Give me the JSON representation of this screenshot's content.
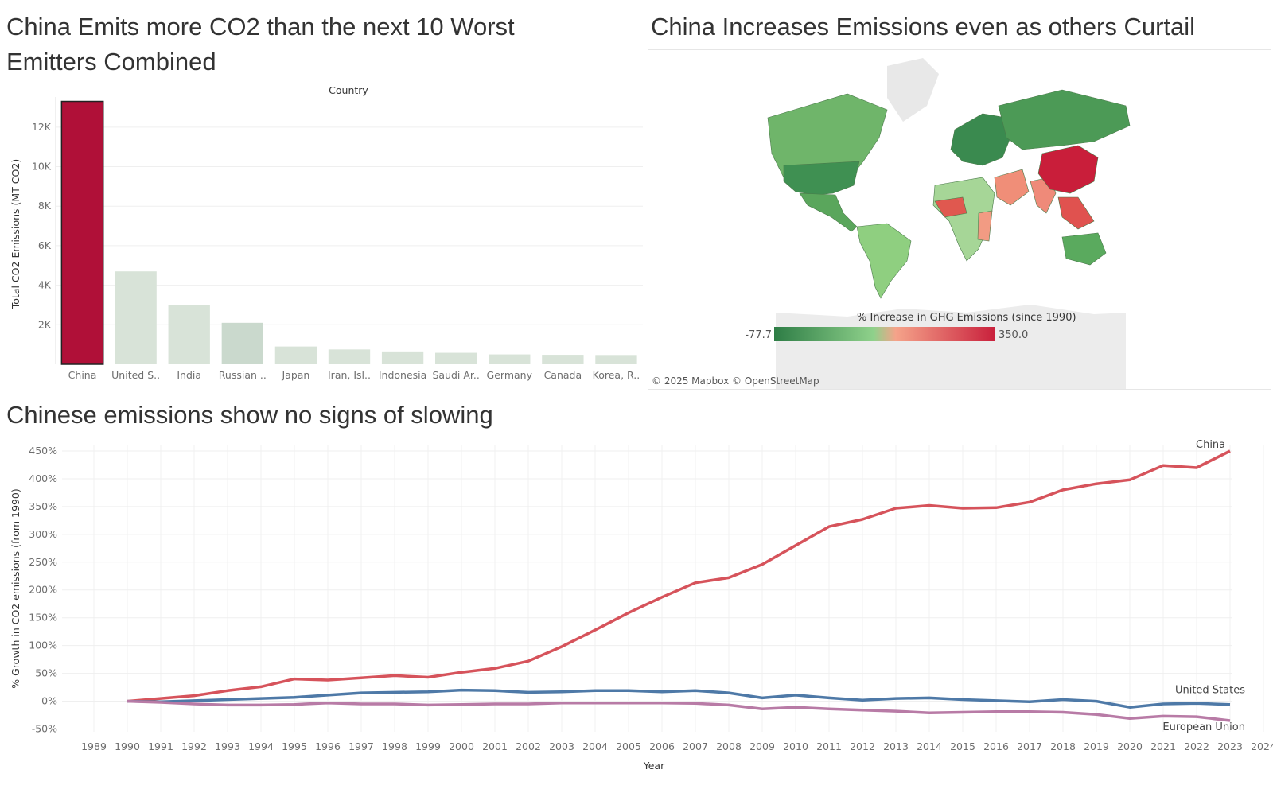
{
  "titles": {
    "bar": "China Emits more CO2 than the next 10 Worst Emitters Combined",
    "map": "China Increases Emissions even as others Curtail",
    "line": "Chinese emissions show no signs of slowing"
  },
  "map": {
    "legend_title": "% Increase in GHG Emissions (since 1990)",
    "legend_min": "-77.7",
    "legend_max": "350.0",
    "attribution": "© 2025 Mapbox © OpenStreetMap",
    "colors": {
      "low": "#2e7d46",
      "mid_low": "#8fd18b",
      "mid_high": "#f5a38a",
      "high": "#c9203c"
    }
  },
  "chart_data": [
    {
      "type": "bar",
      "title": "China Emits more CO2 than the next 10 Worst Emitters Combined",
      "header": "Country",
      "ylabel": "Total CO2 Emissions (MT CO2)",
      "ylim": [
        0,
        13200
      ],
      "yticks": [
        2000,
        4000,
        6000,
        8000,
        10000,
        12000
      ],
      "ytick_labels": [
        "2K",
        "4K",
        "6K",
        "8K",
        "10K",
        "12K"
      ],
      "categories": [
        "China",
        "United S..",
        "India",
        "Russian ..",
        "Japan",
        "Iran, Isl..",
        "Indonesia",
        "Saudi Ar..",
        "Germany",
        "Canada",
        "Korea, R.."
      ],
      "values": [
        13300,
        4700,
        3000,
        2100,
        900,
        750,
        650,
        580,
        500,
        480,
        470
      ],
      "colors": [
        "#b01038",
        "#d8e3d8",
        "#d8e3d8",
        "#cad9cd",
        "#d8e3d8",
        "#d8e3d8",
        "#d8e3d8",
        "#d8e3d8",
        "#d8e3d8",
        "#d8e3d8",
        "#d8e3d8"
      ]
    },
    {
      "type": "line",
      "title": "Chinese emissions show no signs of slowing",
      "xlabel": "Year",
      "ylabel": "% Growth in CO2 emissions (from 1990)",
      "x_ticks": [
        1989,
        1990,
        1991,
        1992,
        1993,
        1994,
        1995,
        1996,
        1997,
        1998,
        1999,
        2000,
        2001,
        2002,
        2003,
        2004,
        2005,
        2006,
        2007,
        2008,
        2009,
        2010,
        2011,
        2012,
        2013,
        2014,
        2015,
        2016,
        2017,
        2018,
        2019,
        2020,
        2021,
        2022,
        2023,
        2024
      ],
      "xlim": [
        1989,
        2024
      ],
      "ylim": [
        -55,
        460
      ],
      "yticks": [
        -50,
        0,
        50,
        100,
        150,
        200,
        250,
        300,
        350,
        400,
        450
      ],
      "ytick_labels": [
        "-50%",
        "0%",
        "50%",
        "100%",
        "150%",
        "200%",
        "250%",
        "300%",
        "350%",
        "400%",
        "450%"
      ],
      "x": [
        1990,
        1991,
        1992,
        1993,
        1994,
        1995,
        1996,
        1997,
        1998,
        1999,
        2000,
        2001,
        2002,
        2003,
        2004,
        2005,
        2006,
        2007,
        2008,
        2009,
        2010,
        2011,
        2012,
        2013,
        2014,
        2015,
        2016,
        2017,
        2018,
        2019,
        2020,
        2021,
        2022,
        2023
      ],
      "series": [
        {
          "name": "China",
          "color": "#d6535b",
          "values": [
            0,
            5,
            10,
            19,
            26,
            40,
            38,
            42,
            46,
            43,
            52,
            59,
            72,
            98,
            128,
            159,
            187,
            213,
            222,
            246,
            280,
            314,
            327,
            347,
            352,
            347,
            348,
            358,
            380,
            391,
            398,
            424,
            420,
            450
          ]
        },
        {
          "name": "United States",
          "color": "#4e79a7",
          "values": [
            0,
            -1,
            1,
            3,
            5,
            7,
            11,
            15,
            16,
            17,
            20,
            19,
            16,
            17,
            19,
            19,
            17,
            19,
            15,
            6,
            11,
            6,
            2,
            5,
            6,
            3,
            1,
            -1,
            3,
            0,
            -11,
            -5,
            -4,
            -6
          ]
        },
        {
          "name": "European Union",
          "color": "#b87ba6",
          "values": [
            0,
            -2,
            -5,
            -7,
            -7,
            -6,
            -3,
            -5,
            -5,
            -7,
            -6,
            -5,
            -5,
            -3,
            -3,
            -3,
            -3,
            -4,
            -7,
            -14,
            -11,
            -14,
            -16,
            -18,
            -21,
            -20,
            -19,
            -19,
            -20,
            -24,
            -31,
            -27,
            -28,
            -35
          ]
        }
      ]
    }
  ]
}
